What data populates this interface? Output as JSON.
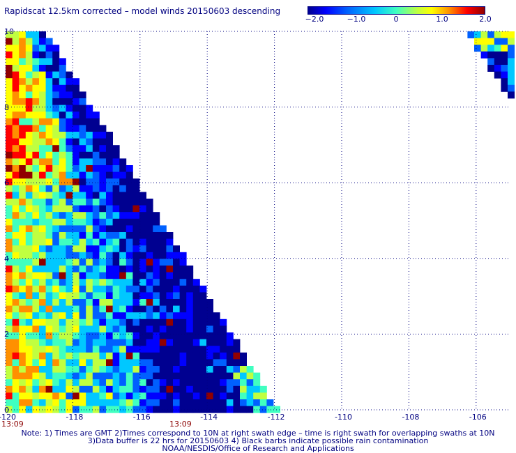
{
  "title": "Rapidscat 12.5km corrected – model winds 20150603 descending",
  "colorbar": {
    "ticks": [
      "−2.0",
      "−1.0",
      "0",
      "1.0",
      "2.0"
    ],
    "tick_values": [
      -2.0,
      -1.0,
      0,
      1.0,
      2.0
    ],
    "range": [
      -2.0,
      2.0
    ],
    "colors": [
      "#000090",
      "#0000ff",
      "#0060ff",
      "#00c8ff",
      "#40ffc0",
      "#c0ff40",
      "#ffff00",
      "#ff9000",
      "#ff0000",
      "#900000"
    ]
  },
  "map": {
    "lon_range": [
      -120,
      -105
    ],
    "lat_range": [
      0,
      10
    ],
    "lon_labels": [
      "-120",
      "-118",
      "-116",
      "-114",
      "-112",
      "-110",
      "-108",
      "-106"
    ],
    "lon_values": [
      -120,
      -118,
      -116,
      -114,
      -112,
      -110,
      -108,
      -106
    ],
    "lat_labels": [
      "0",
      "2",
      "4",
      "6",
      "8",
      "10"
    ],
    "lat_values": [
      0,
      2,
      4,
      6,
      8,
      10
    ],
    "time_labels": [
      {
        "text": "13:09",
        "lon": -120
      },
      {
        "text": "13:09",
        "lon": -115
      }
    ],
    "grid_color": "#000080",
    "main_swath_edge": {
      "top_lon": -118.8,
      "bottom_lon": -111.9,
      "lat_top": 10.0,
      "lat_bottom": 0.0
    },
    "corner_swath_edge": {
      "top_lon": -106.3,
      "bottom_lon": -105.0,
      "lat_top": 10.0,
      "lat_bottom": 8.2
    }
  },
  "notes": [
    "Note: 1) Times are GMT 2)Times correspond to 10N at right swath edge – time is right swath for overlapping swaths at 10N",
    "3)Data buffer is 22 hrs for 20150603 4) Black barbs indicate possible rain contamination",
    "NOAA/NESDIS/Office of Research and Applications"
  ]
}
